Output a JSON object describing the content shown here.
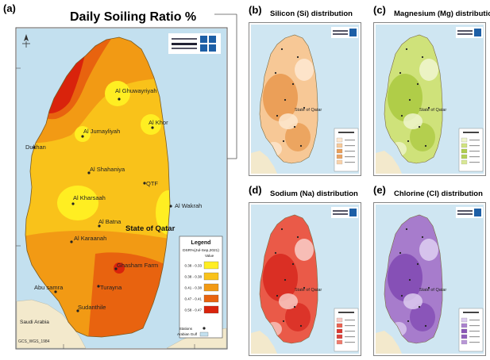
{
  "main_map": {
    "letter": "(a)",
    "title": "Daily Soiling Ratio %",
    "country_label": "State of Qatar",
    "neighbor_label": "Saudi Arabia",
    "gulf_label": "Arabian Gulf",
    "crs_label": "GCS_WGS_1984",
    "places": [
      {
        "name": "Al Ghuwayriyah"
      },
      {
        "name": "Al Khor"
      },
      {
        "name": "Al Jumayliyah"
      },
      {
        "name": "Dukhan"
      },
      {
        "name": "Al Shahaniya"
      },
      {
        "name": "QTF"
      },
      {
        "name": "Al Kharsaah"
      },
      {
        "name": "Al Wakrah"
      },
      {
        "name": "Al Batna"
      },
      {
        "name": "Al Karaanah"
      },
      {
        "name": "Ghasham Farm"
      },
      {
        "name": "Abu samra"
      },
      {
        "name": "Turayna"
      },
      {
        "name": "Sudanthile"
      }
    ],
    "legend": {
      "title": "Legend",
      "subtitle": "DSR%(Jul-Sep,2021)",
      "value_header": "Value",
      "classes": [
        {
          "label": "0.38 - 0.33",
          "color": "#ffee22"
        },
        {
          "label": "0.38 - 0.38",
          "color": "#f9c21a"
        },
        {
          "label": "0.41 - 0.38",
          "color": "#f29a14"
        },
        {
          "label": "0.47 - 0.41",
          "color": "#e8630f"
        },
        {
          "label": "0.58 - 0.47",
          "color": "#d9230c"
        }
      ],
      "station_label": "Stations",
      "gulf_label": "Arabian Gulf"
    }
  },
  "panels": [
    {
      "letter": "(b)",
      "title": "Silicon (Si) distribution",
      "country_label": "State of Qatar",
      "base_color": "#f7c896",
      "accent_color": "#e79549",
      "light_color": "#fde7cf"
    },
    {
      "letter": "(c)",
      "title": "Magnesium (Mg) distribution",
      "country_label": "State of Qatar",
      "base_color": "#cfe27a",
      "accent_color": "#a8c83c",
      "light_color": "#eef5cc"
    },
    {
      "letter": "(d)",
      "title": "Sodium (Na) distribution",
      "country_label": "State of Qatar",
      "base_color": "#ea5a48",
      "accent_color": "#d6241c",
      "light_color": "#f8c8c2"
    },
    {
      "letter": "(e)",
      "title": "Chlorine (Cl) distribution",
      "country_label": "State of Qatar",
      "base_color": "#a77ccc",
      "accent_color": "#7e45b0",
      "light_color": "#dccbef"
    }
  ]
}
